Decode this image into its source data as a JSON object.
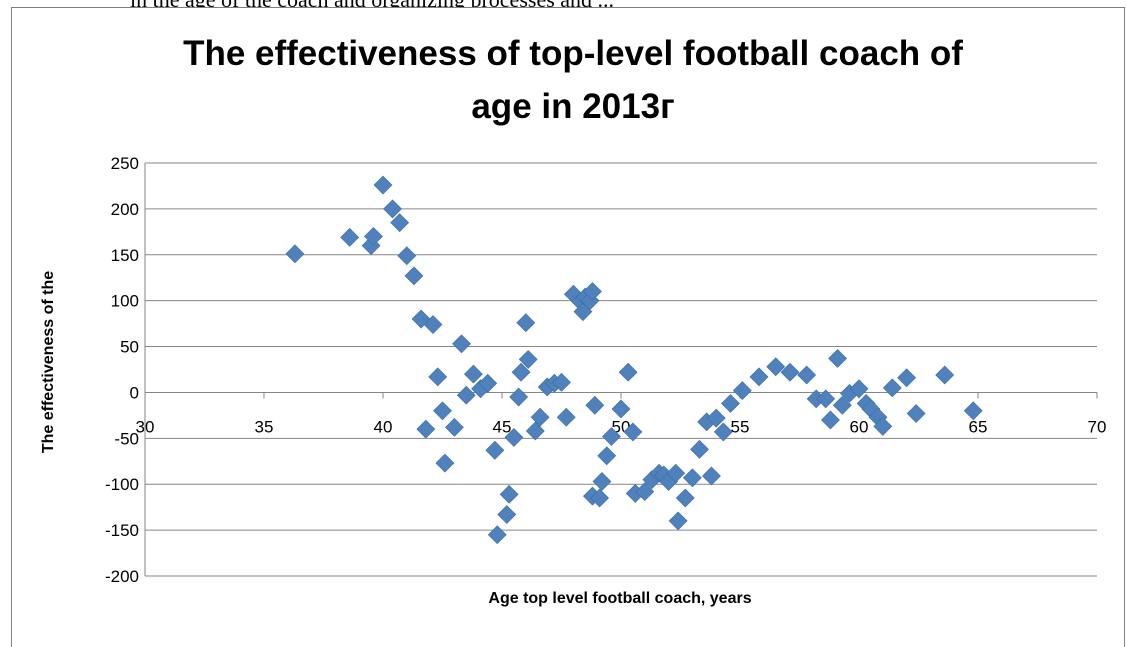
{
  "page": {
    "top_text": "in the age of the coach and organizing processes and ..."
  },
  "chart_data": {
    "type": "scatter",
    "title": "The effectiveness of top-level football coach of age in 2013г",
    "title_lines": [
      "The effectiveness of top-level football coach of",
      "age in 2013г"
    ],
    "xlabel": "Age top level football coach, years",
    "ylabel": "The effectiveness of the",
    "xlim": [
      30,
      70
    ],
    "ylim": [
      -200,
      250
    ],
    "x_ticks": [
      "30",
      "35",
      "40",
      "45",
      "50",
      "55",
      "60",
      "65",
      "70"
    ],
    "y_ticks": [
      "250",
      "200",
      "150",
      "100",
      "50",
      "0",
      "-50",
      "-100",
      "-150",
      "-200"
    ],
    "grid": true,
    "legend": "none",
    "marker_color": "#4f81bd",
    "series": [
      {
        "points": [
          [
            36.3,
            151
          ],
          [
            38.6,
            169
          ],
          [
            39.5,
            160
          ],
          [
            39.6,
            170
          ],
          [
            40.0,
            226
          ],
          [
            40.4,
            200
          ],
          [
            40.7,
            185
          ],
          [
            41.0,
            149
          ],
          [
            41.3,
            127
          ],
          [
            41.6,
            80
          ],
          [
            41.8,
            -40
          ],
          [
            42.1,
            74
          ],
          [
            42.3,
            17
          ],
          [
            42.5,
            -20
          ],
          [
            42.6,
            -77
          ],
          [
            43.0,
            -38
          ],
          [
            43.3,
            53
          ],
          [
            43.5,
            -3
          ],
          [
            43.8,
            20
          ],
          [
            44.1,
            4
          ],
          [
            44.4,
            10
          ],
          [
            44.7,
            -63
          ],
          [
            44.8,
            -155
          ],
          [
            45.2,
            -133
          ],
          [
            45.3,
            -111
          ],
          [
            45.5,
            -49
          ],
          [
            45.7,
            -5
          ],
          [
            45.8,
            22
          ],
          [
            46.0,
            76
          ],
          [
            46.1,
            36
          ],
          [
            46.4,
            -42
          ],
          [
            46.6,
            -27
          ],
          [
            46.9,
            6
          ],
          [
            47.2,
            10
          ],
          [
            47.5,
            11
          ],
          [
            47.7,
            -27
          ],
          [
            48.0,
            107
          ],
          [
            48.3,
            99
          ],
          [
            48.4,
            88
          ],
          [
            48.5,
            104
          ],
          [
            48.7,
            100
          ],
          [
            48.8,
            110
          ],
          [
            48.8,
            -113
          ],
          [
            48.9,
            -14
          ],
          [
            49.1,
            -115
          ],
          [
            49.2,
            -97
          ],
          [
            49.4,
            -69
          ],
          [
            49.6,
            -48
          ],
          [
            50.0,
            -18
          ],
          [
            50.3,
            22
          ],
          [
            50.5,
            -43
          ],
          [
            50.6,
            -110
          ],
          [
            51.0,
            -108
          ],
          [
            51.3,
            -95
          ],
          [
            51.6,
            -88
          ],
          [
            51.8,
            -90
          ],
          [
            52.0,
            -97
          ],
          [
            52.3,
            -88
          ],
          [
            52.4,
            -140
          ],
          [
            52.7,
            -115
          ],
          [
            53.0,
            -93
          ],
          [
            53.3,
            -62
          ],
          [
            53.6,
            -32
          ],
          [
            53.8,
            -91
          ],
          [
            54.0,
            -28
          ],
          [
            54.3,
            -43
          ],
          [
            54.6,
            -12
          ],
          [
            55.1,
            2
          ],
          [
            55.8,
            17
          ],
          [
            56.5,
            28
          ],
          [
            57.1,
            22
          ],
          [
            57.8,
            19
          ],
          [
            58.2,
            -7
          ],
          [
            58.6,
            -7
          ],
          [
            58.8,
            -30
          ],
          [
            59.1,
            37
          ],
          [
            59.3,
            -14
          ],
          [
            59.6,
            -1
          ],
          [
            60.0,
            4
          ],
          [
            60.3,
            -12
          ],
          [
            60.5,
            -18
          ],
          [
            60.8,
            -27
          ],
          [
            61.0,
            -37
          ],
          [
            61.4,
            5
          ],
          [
            62.0,
            16
          ],
          [
            62.4,
            -23
          ],
          [
            63.6,
            19
          ],
          [
            64.8,
            -20
          ]
        ]
      }
    ]
  }
}
